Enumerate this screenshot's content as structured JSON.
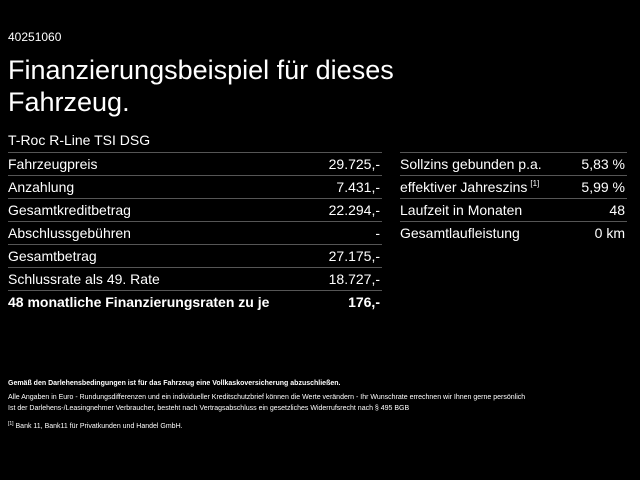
{
  "id": "40251060",
  "title": "Finanzierungsbeispiel für dieses Fahrzeug.",
  "subtitle": "T-Roc R-Line TSI DSG",
  "left_table": {
    "rows": [
      [
        "Fahrzeugpreis",
        "29.725,-"
      ],
      [
        "Anzahlung",
        "7.431,-"
      ],
      [
        "Gesamtkreditbetrag",
        "22.294,-"
      ],
      [
        "Abschlussgebühren",
        "-"
      ],
      [
        "Gesamtbetrag",
        "27.175,-"
      ],
      [
        "Schlussrate als 49. Rate",
        "18.727,-"
      ],
      [
        "48 monatliche Finanzierungsraten zu je",
        "176,-"
      ]
    ]
  },
  "right_table": {
    "rows": [
      [
        "Sollzins gebunden p.a.",
        "5,83 %"
      ],
      [
        "effektiver Jahreszins",
        "5,99 %"
      ],
      [
        "Laufzeit in Monaten",
        "48"
      ],
      [
        "Gesamtlaufleistung",
        "0 km"
      ]
    ],
    "footnote_ref": "[1]"
  },
  "notes": {
    "bold": "Gemäß den Darlehensbedingungen ist für das Fahrzeug eine Vollkaskoversicherung abzuschließen.",
    "lines": [
      "Alle Angaben in Euro - Rundungsdifferenzen und ein individueller Kreditschutzbrief können die Werte verändern - Ihr Wunschrate errechnen wir Ihnen gerne persönlich",
      "Ist der Darlehens-/Leasingnehmer Verbraucher, besteht nach Vertragsabschluss ein gesetzliches Widerrufsrecht nach § 495 BGB"
    ],
    "footnote_mark": "[1]",
    "footnote": "Bank 11, Bank11 für Privatkunden und Handel GmbH."
  }
}
